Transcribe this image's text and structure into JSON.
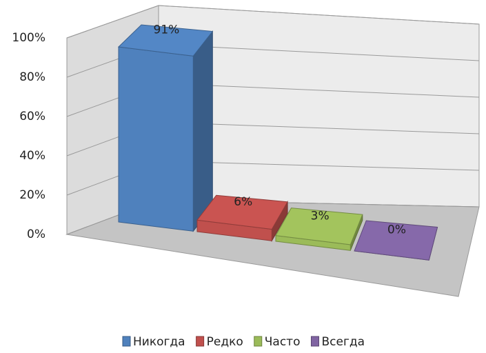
{
  "chart_data": {
    "type": "bar3d",
    "series": [
      {
        "name": "Никогда",
        "color": "#4f81bd",
        "values": [
          91
        ],
        "value_labels": [
          "91%"
        ]
      },
      {
        "name": "Редко",
        "color": "#c0504d",
        "values": [
          6
        ],
        "value_labels": [
          "6%"
        ]
      },
      {
        "name": "Часто",
        "color": "#9bbb59",
        "values": [
          3
        ],
        "value_labels": [
          "3%"
        ]
      },
      {
        "name": "Всегда",
        "color": "#8064a2",
        "values": [
          0
        ],
        "value_labels": [
          "0%"
        ]
      }
    ],
    "ylim": [
      0,
      100
    ],
    "yticks": [
      {
        "value": 0,
        "label": "0%"
      },
      {
        "value": 20,
        "label": "20%"
      },
      {
        "value": 40,
        "label": "40%"
      },
      {
        "value": 60,
        "label": "60%"
      },
      {
        "value": 80,
        "label": "80%"
      },
      {
        "value": 100,
        "label": "100%"
      }
    ],
    "grid": true,
    "legend": "bottom"
  }
}
